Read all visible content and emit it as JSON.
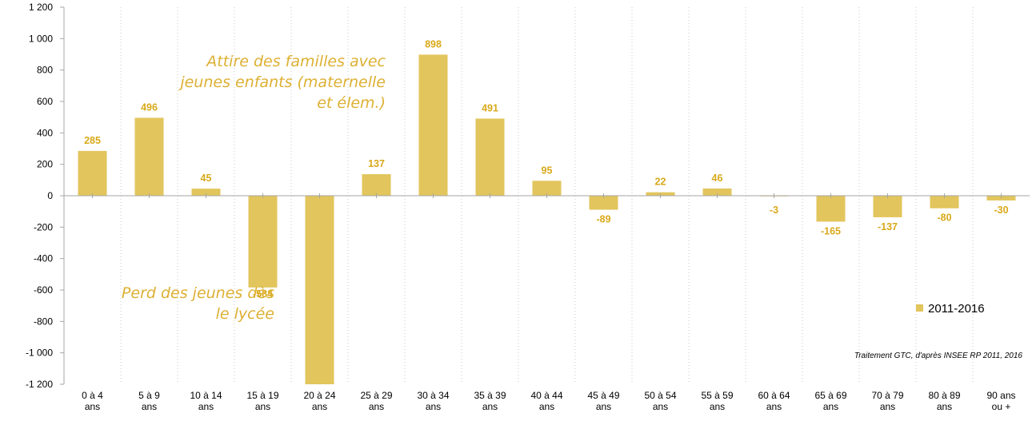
{
  "chart_data": {
    "type": "bar",
    "categories": [
      [
        "0 à 4",
        "ans"
      ],
      [
        "5 à 9",
        "ans"
      ],
      [
        "10 à 14",
        "ans"
      ],
      [
        "15 à 19",
        "ans"
      ],
      [
        "20 à 24",
        "ans"
      ],
      [
        "25 à 29",
        "ans"
      ],
      [
        "30 à 34",
        "ans"
      ],
      [
        "35 à 39",
        "ans"
      ],
      [
        "40 à 44",
        "ans"
      ],
      [
        "45 à 49",
        "ans"
      ],
      [
        "50 à 54",
        "ans"
      ],
      [
        "55 à 59",
        "ans"
      ],
      [
        "60 à 64",
        "ans"
      ],
      [
        "65 à 69",
        "ans"
      ],
      [
        "70 à 79",
        "ans"
      ],
      [
        "80 à 89",
        "ans"
      ],
      [
        "90 ans",
        "ou +"
      ]
    ],
    "series": [
      {
        "name": "2011-2016",
        "values": [
          285,
          496,
          45,
          -584,
          -1200,
          137,
          898,
          491,
          95,
          -89,
          22,
          46,
          -3,
          -165,
          -137,
          -80,
          -30
        ],
        "labels": [
          "285",
          "496",
          "45",
          "-584",
          "",
          "137",
          "898",
          "491",
          "95",
          "-89",
          "22",
          "46",
          "-3",
          "-165",
          "-137",
          "-80",
          "-30"
        ]
      }
    ],
    "ylim": [
      -1200,
      1200
    ],
    "yticks": [
      1200,
      1000,
      800,
      600,
      400,
      200,
      0,
      -200,
      -400,
      -600,
      -800,
      -1000,
      -1200
    ],
    "ytick_labels": [
      "1 200",
      "1 000",
      "800",
      "600",
      "400",
      "200",
      "0",
      "-200",
      "-400",
      "-600",
      "-800",
      "-1 000",
      "-1 200"
    ],
    "title": "",
    "xlabel": "",
    "ylabel": "",
    "grid": "vertical dotted",
    "legend_position": "bottom-right",
    "colors": {
      "bar": "#E2C55C",
      "label": "#D9A91A",
      "annotation": "#DDB033",
      "grid": "#C8C8C8",
      "axis": "#A6A6A6"
    },
    "annotations": [
      {
        "lines": [
          "Attire des familles avec",
          "jeunes enfants (maternelle",
          "et élem.)"
        ]
      },
      {
        "lines": [
          "Perd des jeunes dès",
          "le lycée"
        ]
      }
    ],
    "source_note": "Traitement GTC, d'après INSEE RP 2011, 2016"
  }
}
